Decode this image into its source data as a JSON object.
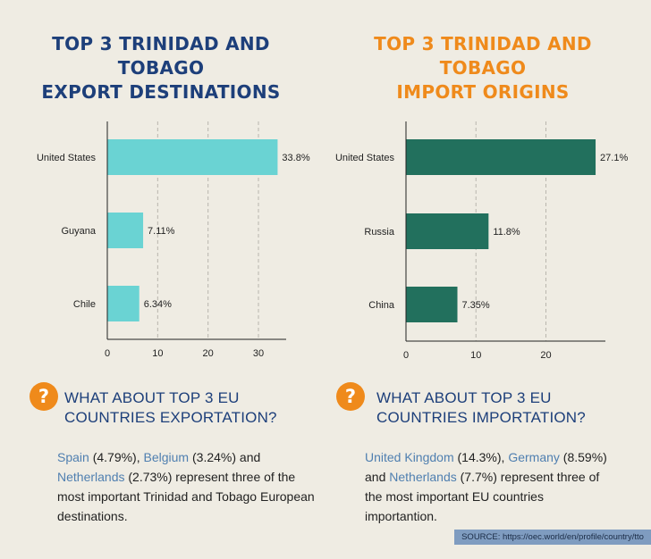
{
  "colors": {
    "left_title": "#1d3f7a",
    "right_title": "#ef8a1b",
    "export_bar": "#6ad3d3",
    "import_bar": "#22705d",
    "q_icon": "#ef8a1b",
    "q_heading": "#1d3f7a",
    "highlight": "#4f7fb0",
    "source_bg": "#7f9cc0"
  },
  "left": {
    "title_lines": [
      "TOP 3 TRINIDAD AND",
      "TOBAGO",
      "EXPORT DESTINATIONS"
    ],
    "question_lines": [
      "WHAT ABOUT TOP 3 EU",
      "COUNTRIES EXPORTATION?"
    ],
    "text": {
      "c1": "Spain",
      "v1": " (4.79%), ",
      "c2": "Belgium",
      "v2": " (3.24%) and ",
      "c3": "Netherlands",
      "v3": " (2.73%) represent three of the most important Trinidad and Tobago European destinations."
    }
  },
  "right": {
    "title_lines": [
      "TOP 3 TRINIDAD AND",
      "TOBAGO",
      "IMPORT ORIGINS"
    ],
    "question_lines": [
      "WHAT ABOUT TOP 3 EU",
      "COUNTRIES IMPORTATION?"
    ],
    "text": {
      "c1": "United Kingdom",
      "v1": " (14.3%), ",
      "c2": "Germany",
      "v2": " (8.59%) and ",
      "c3": "Netherlands",
      "v3": " (7.7%) represent three of the most important EU countries importantion."
    }
  },
  "question_mark": "?",
  "source": "SOURCE: https://oec.world/en/profile/country/tto",
  "chart_data": [
    {
      "type": "bar",
      "orientation": "horizontal",
      "title": "TOP 3 TRINIDAD AND TOBAGO EXPORT DESTINATIONS",
      "categories": [
        "United States",
        "Guyana",
        "Chile"
      ],
      "values": [
        33.8,
        7.11,
        6.34
      ],
      "value_labels": [
        "33.8%",
        "7.11%",
        "6.34%"
      ],
      "xticks": [
        0,
        10,
        20,
        30
      ],
      "xlim": [
        0,
        35.5
      ],
      "grid": "vertical dashed",
      "color": "#6ad3d3"
    },
    {
      "type": "bar",
      "orientation": "horizontal",
      "title": "TOP 3 TRINIDAD AND TOBAGO IMPORT ORIGINS",
      "categories": [
        "United States",
        "Russia",
        "China"
      ],
      "values": [
        27.1,
        11.8,
        7.35
      ],
      "value_labels": [
        "27.1%",
        "11.8%",
        "7.35%"
      ],
      "xticks": [
        0,
        10,
        20
      ],
      "xlim": [
        0,
        28.5
      ],
      "grid": "vertical dashed",
      "color": "#22705d"
    }
  ]
}
